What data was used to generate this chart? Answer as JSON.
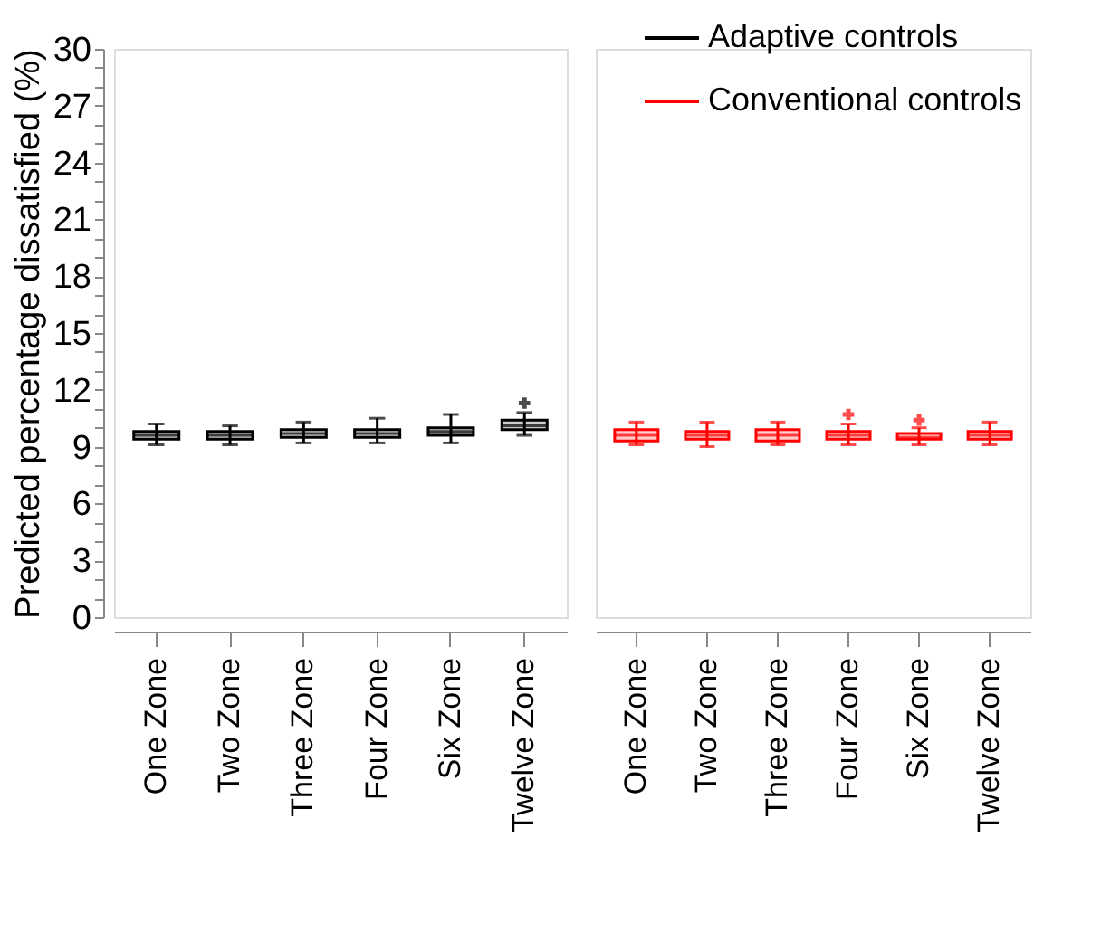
{
  "chart_data": [
    {
      "type": "box",
      "categories": [
        "One Zone",
        "Two Zone",
        "Three Zone",
        "Four Zone",
        "Six Zone",
        "Twelve Zone"
      ],
      "ylabel": "Predicted percentage dissatisfied (%)",
      "ylim": [
        0,
        30
      ],
      "yticks": [
        0,
        {
          "value": 1,
          "label": null
        },
        {
          "value": 2,
          "label": null
        },
        3,
        {
          "value": 4,
          "label": null
        },
        {
          "value": 5,
          "label": null
        },
        6,
        {
          "value": 7,
          "label": null
        },
        {
          "value": 8,
          "label": null
        },
        9,
        {
          "value": 10,
          "label": null
        },
        {
          "value": 11,
          "label": null
        },
        12,
        {
          "value": 13,
          "label": null
        },
        {
          "value": 14,
          "label": null
        },
        15,
        {
          "value": 16,
          "label": null
        },
        {
          "value": 17,
          "label": null
        },
        18,
        {
          "value": 19,
          "label": null
        },
        {
          "value": 20,
          "label": null
        },
        21,
        {
          "value": 22,
          "label": null
        },
        {
          "value": 23,
          "label": null
        },
        24,
        {
          "value": 25,
          "label": null
        },
        {
          "value": 26,
          "label": null
        },
        27,
        {
          "value": 28,
          "label": null
        },
        {
          "value": 29,
          "label": null
        },
        30
      ],
      "legend": "top right",
      "series": [
        {
          "name": "Adaptive controls",
          "color": "#000000",
          "boxes": [
            {
              "low": 9.1,
              "q1": 9.4,
              "median": 9.6,
              "q3": 9.8,
              "high": 10.2
            },
            {
              "low": 9.1,
              "q1": 9.4,
              "median": 9.6,
              "q3": 9.8,
              "high": 10.1
            },
            {
              "low": 9.2,
              "q1": 9.5,
              "median": 9.7,
              "q3": 9.9,
              "high": 10.3
            },
            {
              "low": 9.2,
              "q1": 9.5,
              "median": 9.7,
              "q3": 9.9,
              "high": 10.5
            },
            {
              "low": 9.2,
              "q1": 9.6,
              "median": 9.8,
              "q3": 10.0,
              "high": 10.7
            },
            {
              "low": 9.6,
              "q1": 9.9,
              "median": 10.1,
              "q3": 10.4,
              "high": 10.8,
              "outliers": [
                11.3
              ]
            }
          ]
        }
      ]
    },
    {
      "type": "box",
      "categories": [
        "One Zone",
        "Two Zone",
        "Three Zone",
        "Four Zone",
        "Six Zone",
        "Twelve Zone"
      ],
      "ylim": [
        0,
        30
      ],
      "tick_labels": "x",
      "legend": "top right",
      "series": [
        {
          "name": "Conventional controls",
          "color": "#ff0000",
          "boxes": [
            {
              "low": 9.1,
              "q1": 9.3,
              "median": 9.6,
              "q3": 9.9,
              "high": 10.3
            },
            {
              "low": 9.0,
              "q1": 9.4,
              "median": 9.6,
              "q3": 9.8,
              "high": 10.3
            },
            {
              "low": 9.1,
              "q1": 9.3,
              "median": 9.6,
              "q3": 9.9,
              "high": 10.3
            },
            {
              "low": 9.1,
              "q1": 9.4,
              "median": 9.6,
              "q3": 9.8,
              "high": 10.2,
              "outliers": [
                10.7
              ]
            },
            {
              "low": 9.1,
              "q1": 9.4,
              "median": 9.5,
              "q3": 9.7,
              "high": 10.0,
              "outliers": [
                10.4
              ]
            },
            {
              "low": 9.1,
              "q1": 9.4,
              "median": 9.6,
              "q3": 9.8,
              "high": 10.3
            }
          ]
        }
      ]
    }
  ]
}
